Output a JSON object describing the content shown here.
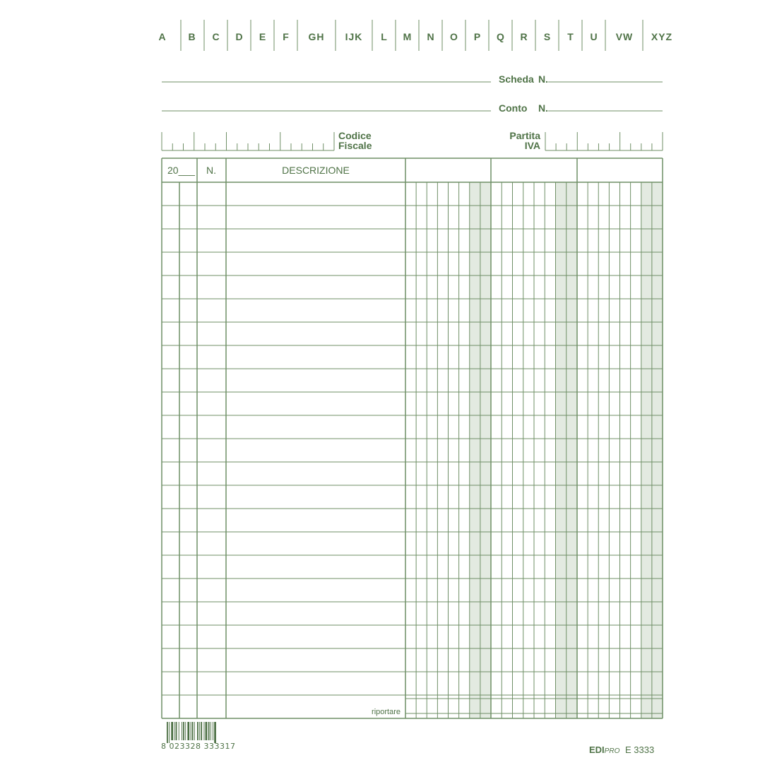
{
  "index_tabs": [
    "A",
    "B",
    "C",
    "D",
    "E",
    "F",
    "GH",
    "IJK",
    "L",
    "M",
    "N",
    "O",
    "P",
    "Q",
    "R",
    "S",
    "T",
    "U",
    "VW",
    "XYZ"
  ],
  "fields": {
    "scheda_label": "Scheda",
    "scheda_n": "N.",
    "conto_label": "Conto",
    "conto_n": "N.",
    "codice_fiscale_line1": "Codice",
    "codice_fiscale_line2": "Fiscale",
    "partita_iva_line1": "Partita",
    "partita_iva_line2": "IVA"
  },
  "table": {
    "col_year": "20___",
    "col_number": "N.",
    "col_description": "DESCRIZIONE",
    "footer_label": "riportare",
    "row_count": 23
  },
  "footer": {
    "barcode": "8 023328 333317",
    "brand": "EDI",
    "brand_suffix": "PRO",
    "product_code": "E 3333"
  },
  "colors": {
    "ink": "#4f7347",
    "line": "#6f8f66",
    "shade": "#e3eae1"
  }
}
